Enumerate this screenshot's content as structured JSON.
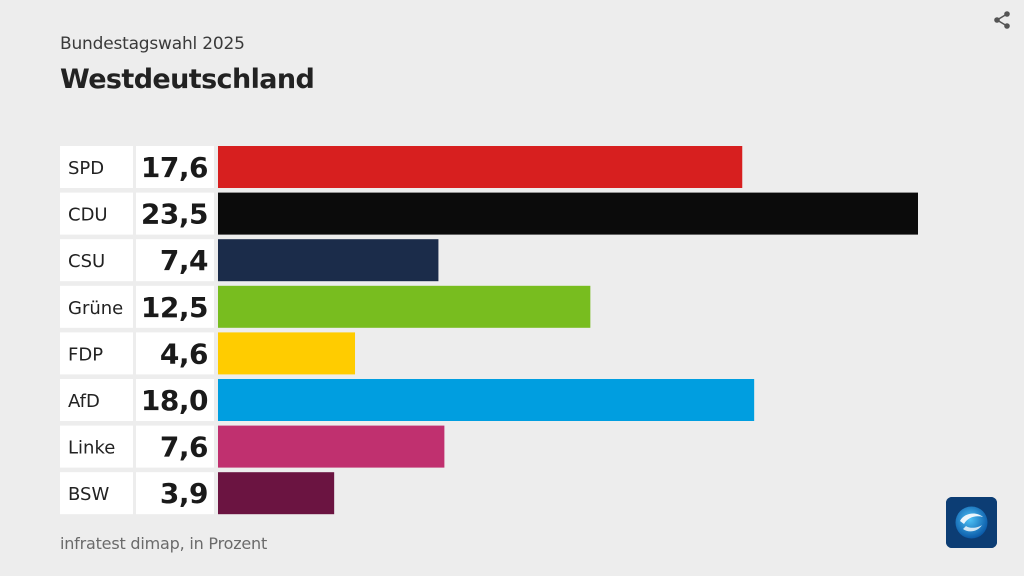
{
  "header": {
    "subtitle": "Bundestagswahl 2025",
    "title": "Westdeutschland"
  },
  "footer": {
    "source": "infratest dimap, in Prozent"
  },
  "icons": {
    "share": "share-icon",
    "logo": "tagesschau-logo-icon"
  },
  "chart_data": {
    "type": "bar",
    "orientation": "horizontal",
    "title": "Westdeutschland",
    "subtitle": "Bundestagswahl 2025",
    "unit": "Prozent",
    "xlim": [
      0,
      23.5
    ],
    "grid": false,
    "legend": "none",
    "categories": [
      "SPD",
      "CDU",
      "CSU",
      "Grüne",
      "FDP",
      "AfD",
      "Linke",
      "BSW"
    ],
    "values": [
      17.6,
      23.5,
      7.4,
      12.5,
      4.6,
      18.0,
      7.6,
      3.9
    ],
    "value_labels": [
      "17,6",
      "23,5",
      "7,4",
      "12,5",
      "4,6",
      "18,0",
      "7,6",
      "3,9"
    ],
    "colors": [
      "#d71f1f",
      "#0b0b0b",
      "#1b2c4a",
      "#78bd1f",
      "#ffcc00",
      "#009ee0",
      "#c0306f",
      "#6b1441"
    ]
  }
}
